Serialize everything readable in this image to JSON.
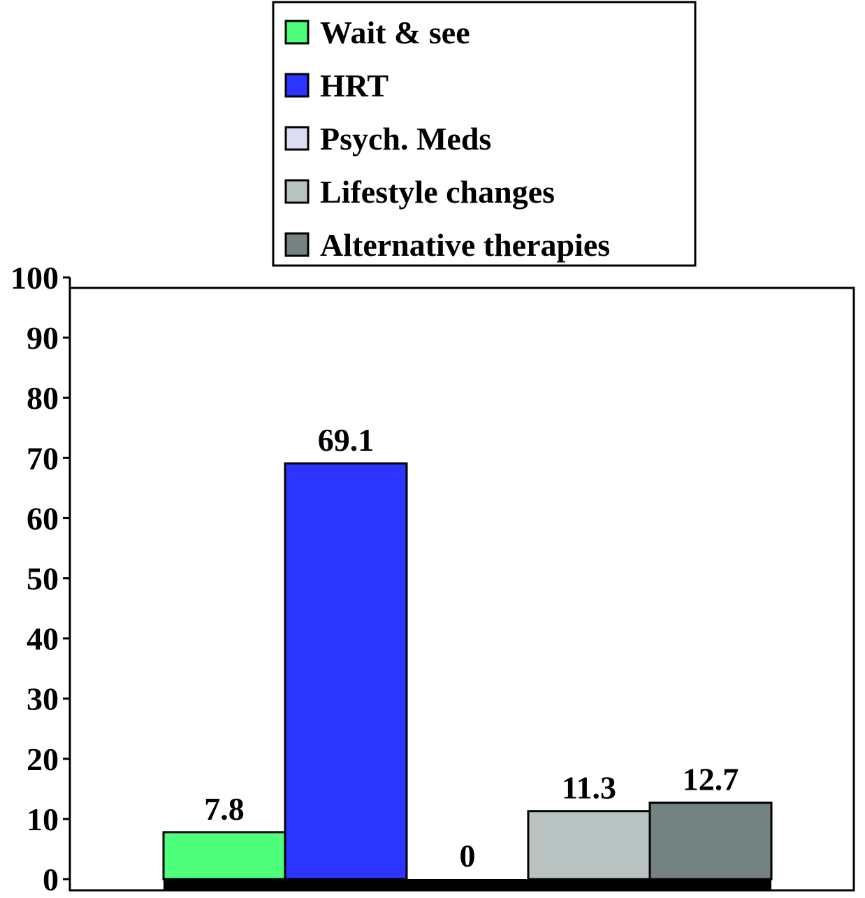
{
  "chart_data": {
    "type": "bar",
    "title": "",
    "xlabel": "",
    "ylabel": "",
    "ylim": [
      0,
      100
    ],
    "yticks": [
      0,
      10,
      20,
      30,
      40,
      50,
      60,
      70,
      80,
      90,
      100
    ],
    "grid": false,
    "legend_placement": "top",
    "series": [
      {
        "name": "Wait & see",
        "value": 7.8,
        "label": "7.8",
        "color": "#4dff7a"
      },
      {
        "name": "HRT",
        "value": 69.1,
        "label": "69.1",
        "color": "#2b35ff"
      },
      {
        "name": "Psych. Meds",
        "value": 0,
        "label": "0",
        "color": "#dcdcf5"
      },
      {
        "name": "Lifestyle changes",
        "value": 11.3,
        "label": "11.3",
        "color": "#b8c3c1"
      },
      {
        "name": "Alternative therapies",
        "value": 12.7,
        "label": "12.7",
        "color": "#748281"
      }
    ]
  }
}
